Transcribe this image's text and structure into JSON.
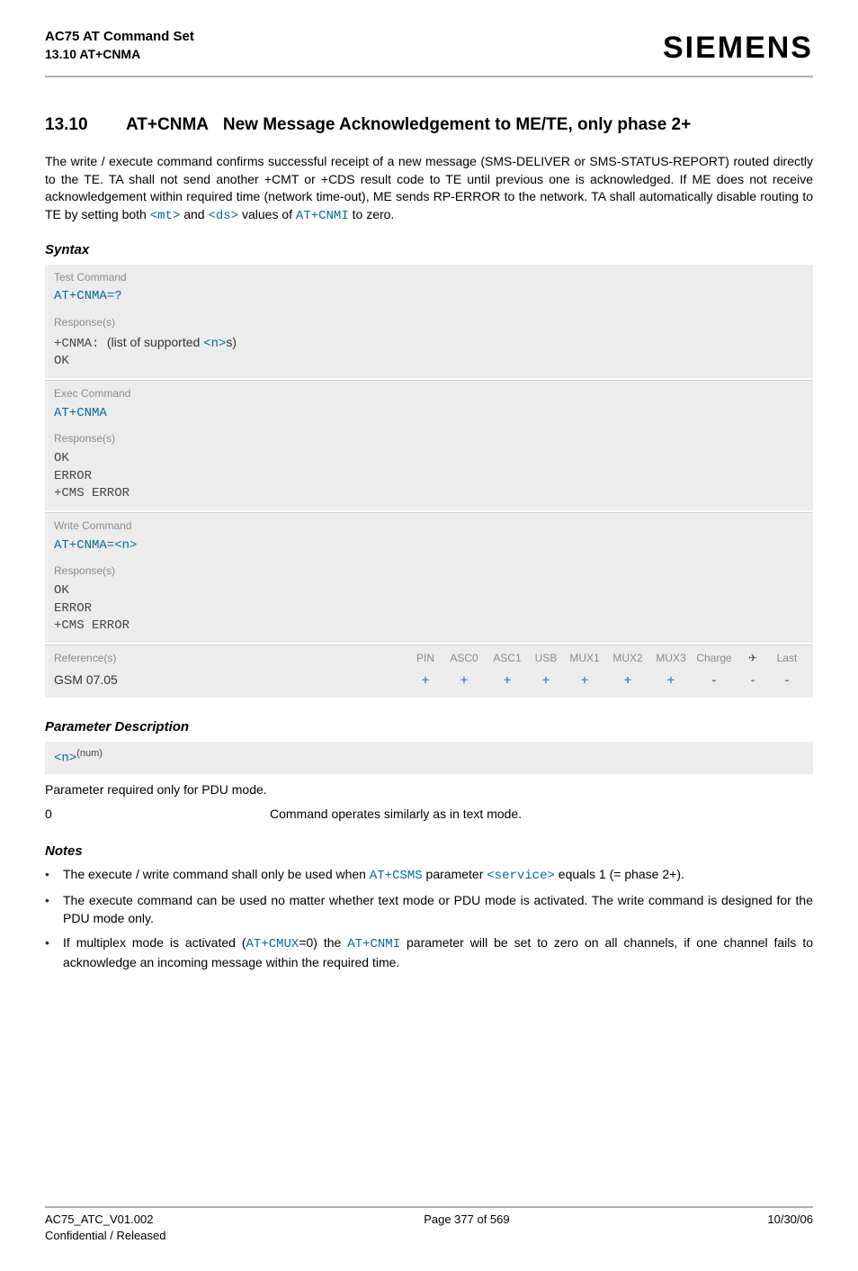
{
  "header": {
    "line1": "AC75 AT Command Set",
    "line2": "13.10 AT+CNMA",
    "brand": "SIEMENS"
  },
  "section": {
    "number": "13.10",
    "title_prefix": "AT+CNMA",
    "title_rest": "New Message Acknowledgement to ME/TE, only phase 2+"
  },
  "intro": {
    "text_before": "The write / execute command confirms successful receipt of a new message (SMS-DELIVER or SMS-STATUS-REPORT) routed directly to the TE. TA shall not send another +CMT or +CDS result code to TE until previous one is acknowledged. If ME does not receive acknowledgement within required time (network time-out), ME sends RP-ERROR to the network. TA shall automatically disable routing to TE by setting both ",
    "mt": "<mt>",
    "and": " and ",
    "ds": "<ds>",
    "values_of": " values of ",
    "cnmi": "AT+CNMI",
    "to_zero": " to zero."
  },
  "syntax_label": "Syntax",
  "syntax": {
    "test": {
      "label": "Test Command",
      "cmd": "AT+CNMA=?",
      "resp_label": "Response(s)",
      "resp_prefix": "+CNMA: ",
      "resp_mid1": "(list of supported ",
      "resp_n": "<n>",
      "resp_mid2": "s)",
      "resp_ok": "OK"
    },
    "exec": {
      "label": "Exec Command",
      "cmd": "AT+CNMA",
      "resp_label": "Response(s)",
      "resp": "OK\nERROR\n+CMS ERROR"
    },
    "write": {
      "label": "Write Command",
      "cmd_prefix": "AT+CNMA=",
      "cmd_n": "<n>",
      "resp_label": "Response(s)",
      "resp": "OK\nERROR\n+CMS ERROR"
    },
    "refs": {
      "label": "Reference(s)",
      "value": "GSM 07.05",
      "cols": [
        "PIN",
        "ASC0",
        "ASC1",
        "USB",
        "MUX1",
        "MUX2",
        "MUX3",
        "Charge",
        "✈",
        "Last"
      ],
      "flags": [
        "+",
        "+",
        "+",
        "+",
        "+",
        "+",
        "+",
        "-",
        "-",
        "-"
      ]
    }
  },
  "param_desc_label": "Parameter Description",
  "param": {
    "n": "<n>",
    "sup": "(num)",
    "line": "Parameter required only for PDU mode.",
    "key": "0",
    "val": "Command operates similarly as in text mode."
  },
  "notes_label": "Notes",
  "notes": [
    {
      "parts": [
        {
          "t": "plain",
          "v": "The execute / write command shall only be used when "
        },
        {
          "t": "link",
          "v": "AT+CSMS"
        },
        {
          "t": "plain",
          "v": " parameter "
        },
        {
          "t": "link",
          "v": "<service>"
        },
        {
          "t": "plain",
          "v": " equals 1 (= phase 2+)."
        }
      ]
    },
    {
      "parts": [
        {
          "t": "plain",
          "v": "The execute command can be used no matter whether text mode or PDU mode is activated. The write command is designed for the PDU mode only."
        }
      ]
    },
    {
      "parts": [
        {
          "t": "plain",
          "v": "If multiplex mode is activated ("
        },
        {
          "t": "link",
          "v": "AT+CMUX"
        },
        {
          "t": "plain",
          "v": "=0) the "
        },
        {
          "t": "link",
          "v": "AT+CNMI"
        },
        {
          "t": "plain",
          "v": " parameter will be set to zero on all channels, if one channel fails to acknowledge an incoming message within the required time."
        }
      ]
    }
  ],
  "footer": {
    "left1": "AC75_ATC_V01.002",
    "left2": "Confidential / Released",
    "mid": "Page 377 of 569",
    "right": "10/30/06"
  },
  "colors": {
    "link": "#006b9e",
    "bg_block": "#ececec",
    "grey_text": "#8a8a8a",
    "plus": "#5a8bbf",
    "rule": "#b0b0b0"
  }
}
